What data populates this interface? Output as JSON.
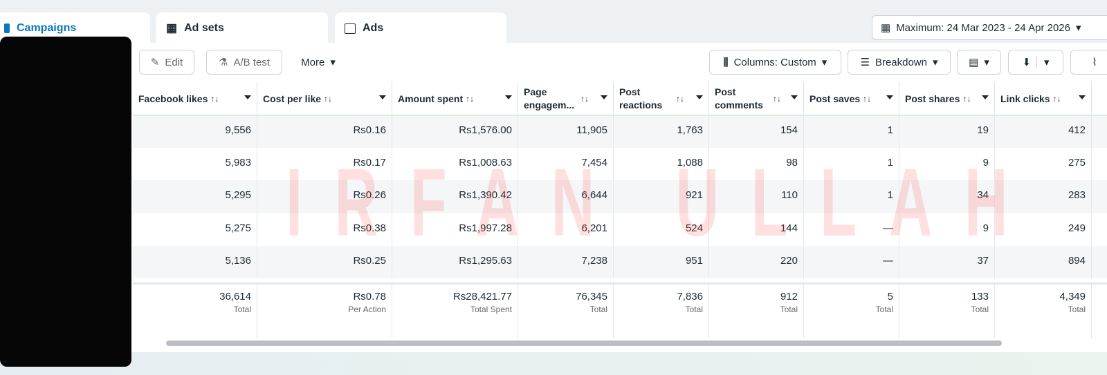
{
  "tabs": [
    "Campaigns",
    "Ad sets",
    "Ads"
  ],
  "date_range": "Maximum: 24 Mar 2023 - 24 Apr 2026",
  "toolbar": {
    "edit": "Edit",
    "ab_test": "A/B test",
    "more": "More",
    "columns": "Columns: Custom",
    "breakdown": "Breakdown"
  },
  "table": {
    "columns": [
      "Facebook likes",
      "Cost per like",
      "Amount spent",
      "Page engagem...",
      "Post reactions",
      "Post comments",
      "Post saves",
      "Post shares",
      "Link clicks"
    ],
    "rows": [
      [
        "9,556",
        "Rs0.16",
        "Rs1,576.00",
        "11,905",
        "1,763",
        "154",
        "1",
        "19",
        "412"
      ],
      [
        "5,983",
        "Rs0.17",
        "Rs1,008.63",
        "7,454",
        "1,088",
        "98",
        "1",
        "9",
        "275"
      ],
      [
        "5,295",
        "Rs0.26",
        "Rs1,390.42",
        "6,644",
        "921",
        "110",
        "1",
        "34",
        "283"
      ],
      [
        "5,275",
        "Rs0.38",
        "Rs1,997.28",
        "6,201",
        "524",
        "144",
        "—",
        "9",
        "249"
      ],
      [
        "5,136",
        "Rs0.25",
        "Rs1,295.63",
        "7,238",
        "951",
        "220",
        "—",
        "37",
        "894"
      ]
    ],
    "totals": [
      "36,614",
      "Rs0.78",
      "Rs28,421.77",
      "76,345",
      "7,836",
      "912",
      "5",
      "133",
      "4,349"
    ],
    "total_labels": [
      "Total",
      "Per Action",
      "Total Spent",
      "Total",
      "Total",
      "Total",
      "Total",
      "Total",
      "Total"
    ]
  },
  "watermark": "IRFAN ULLAH"
}
